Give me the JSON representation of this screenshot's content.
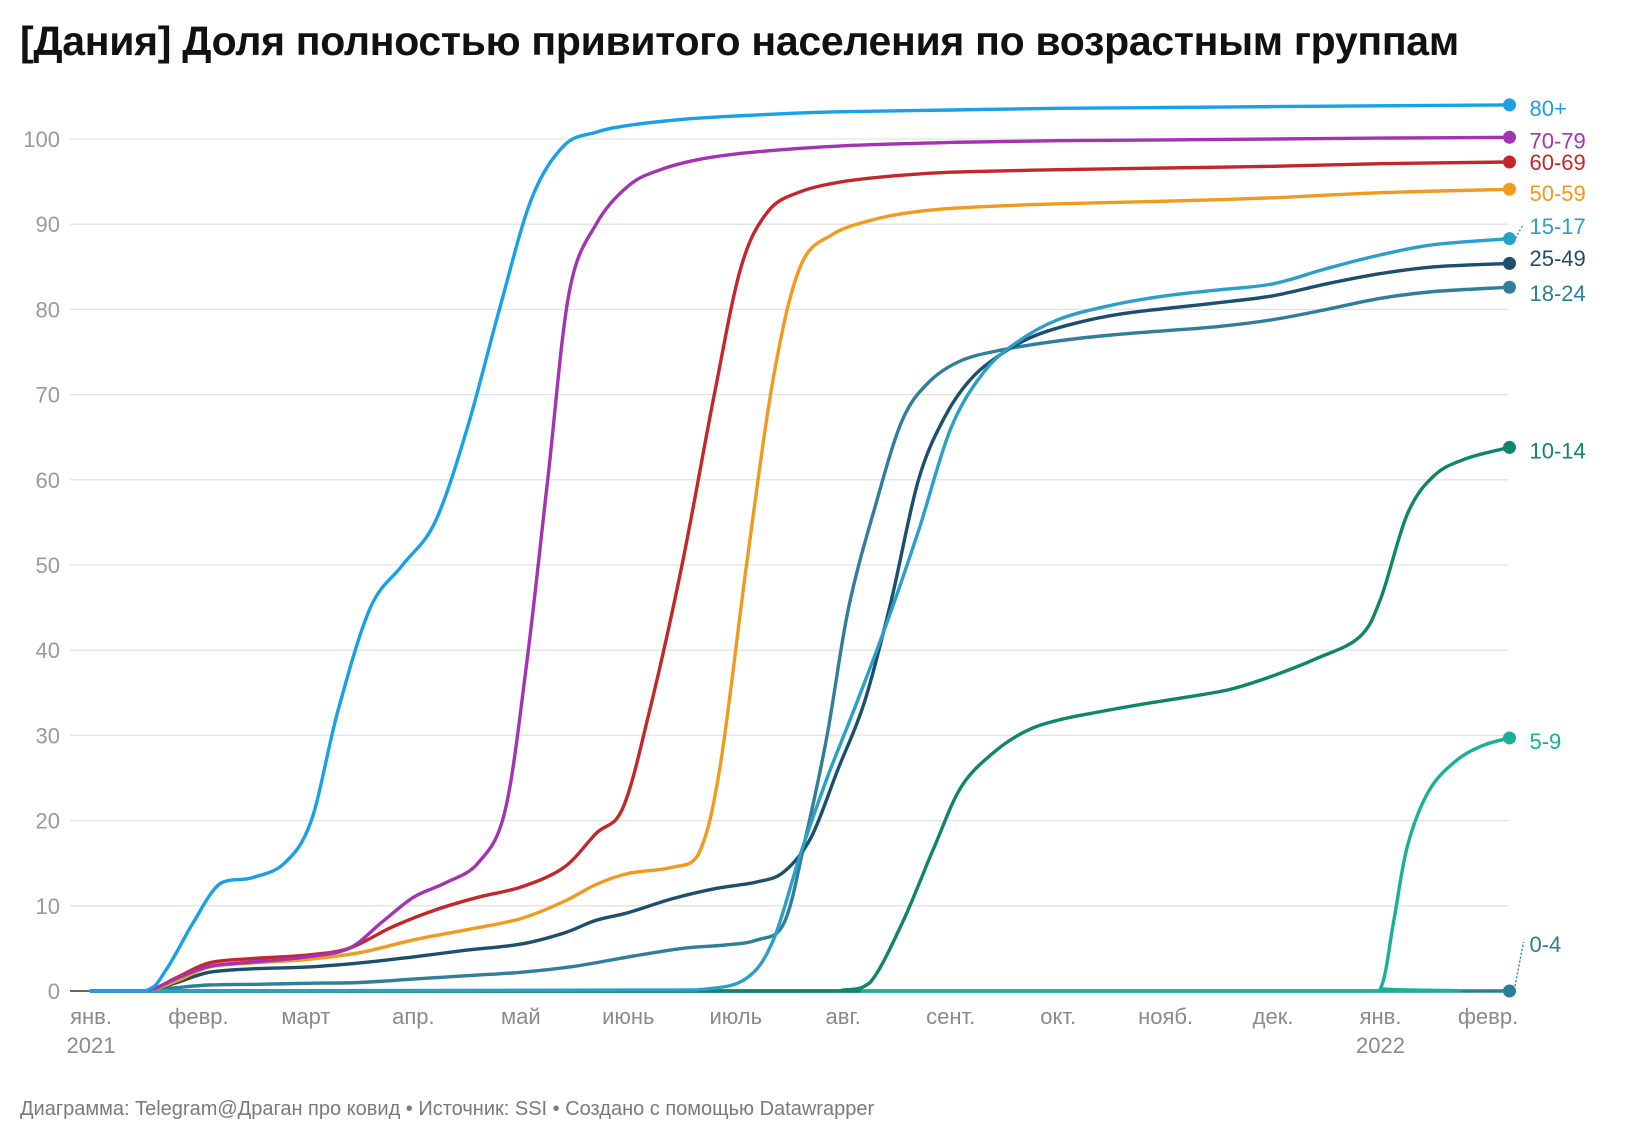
{
  "title": "[Дания] Доля полностью привитого населения по возрастным группам",
  "footer": {
    "text": "Диаграмма: Telegram@Драган про ковид • Источник: SSI • Создано с помощью Datawrapper"
  },
  "chart_data": {
    "type": "line",
    "title": "[Дания] Доля полностью привитого населения по возрастным группам",
    "ylim": [
      0,
      100
    ],
    "yticks": [
      0,
      10,
      20,
      30,
      40,
      50,
      60,
      70,
      80,
      90,
      100
    ],
    "grid": true,
    "legend": "direct labels at line ends (right)",
    "x_unit": "months since 2021-01-01",
    "xlim": [
      0,
      13.2
    ],
    "x_ticks": [
      {
        "pos": 0,
        "label": "янв.",
        "year": "2021"
      },
      {
        "pos": 1,
        "label": "февр.",
        "year": ""
      },
      {
        "pos": 2,
        "label": "март",
        "year": ""
      },
      {
        "pos": 3,
        "label": "апр.",
        "year": ""
      },
      {
        "pos": 4,
        "label": "май",
        "year": ""
      },
      {
        "pos": 5,
        "label": "июнь",
        "year": ""
      },
      {
        "pos": 6,
        "label": "июль",
        "year": ""
      },
      {
        "pos": 7,
        "label": "авг.",
        "year": ""
      },
      {
        "pos": 8,
        "label": "сент.",
        "year": ""
      },
      {
        "pos": 9,
        "label": "окт.",
        "year": ""
      },
      {
        "pos": 10,
        "label": "нояб.",
        "year": ""
      },
      {
        "pos": 11,
        "label": "дек.",
        "year": ""
      },
      {
        "pos": 12,
        "label": "янв.",
        "year": "2022"
      },
      {
        "pos": 13,
        "label": "февр.",
        "year": ""
      }
    ],
    "series": [
      {
        "name": "80+",
        "color": "#18a1e6",
        "points": [
          [
            0,
            0
          ],
          [
            0.5,
            0
          ],
          [
            0.7,
            2.5
          ],
          [
            0.95,
            8
          ],
          [
            1.2,
            12.6
          ],
          [
            1.5,
            13.3
          ],
          [
            1.8,
            15
          ],
          [
            2.05,
            20
          ],
          [
            2.3,
            33
          ],
          [
            2.6,
            45
          ],
          [
            2.9,
            50
          ],
          [
            3.2,
            55
          ],
          [
            3.5,
            66
          ],
          [
            3.8,
            80
          ],
          [
            4.1,
            93
          ],
          [
            4.4,
            99.2
          ],
          [
            4.7,
            100.8
          ],
          [
            5.0,
            101.6
          ],
          [
            5.5,
            102.3
          ],
          [
            6.0,
            102.7
          ],
          [
            6.5,
            103.0
          ],
          [
            7.0,
            103.2
          ],
          [
            8.0,
            103.4
          ],
          [
            9.0,
            103.6
          ],
          [
            10.0,
            103.7
          ],
          [
            11.0,
            103.8
          ],
          [
            12.0,
            103.9
          ],
          [
            13.2,
            104.0
          ]
        ]
      },
      {
        "name": "70-79",
        "color": "#a333b1",
        "points": [
          [
            0,
            0
          ],
          [
            0.5,
            0
          ],
          [
            0.8,
            1.5
          ],
          [
            1.1,
            2.9
          ],
          [
            1.5,
            3.4
          ],
          [
            2.0,
            4.0
          ],
          [
            2.4,
            5.0
          ],
          [
            2.7,
            8.0
          ],
          [
            3.0,
            11.0
          ],
          [
            3.3,
            12.7
          ],
          [
            3.6,
            15.0
          ],
          [
            3.85,
            21
          ],
          [
            4.05,
            38
          ],
          [
            4.25,
            60
          ],
          [
            4.45,
            82
          ],
          [
            4.7,
            90
          ],
          [
            5.0,
            94.5
          ],
          [
            5.3,
            96.4
          ],
          [
            5.7,
            97.7
          ],
          [
            6.2,
            98.5
          ],
          [
            7.0,
            99.2
          ],
          [
            8.0,
            99.6
          ],
          [
            9.0,
            99.8
          ],
          [
            10.0,
            99.9
          ],
          [
            11.0,
            100.0
          ],
          [
            12.0,
            100.1
          ],
          [
            13.2,
            100.2
          ]
        ]
      },
      {
        "name": "60-69",
        "color": "#c3272b",
        "points": [
          [
            0,
            0
          ],
          [
            0.5,
            0
          ],
          [
            0.8,
            1.6
          ],
          [
            1.1,
            3.3
          ],
          [
            1.5,
            3.8
          ],
          [
            2.0,
            4.2
          ],
          [
            2.4,
            5.0
          ],
          [
            2.8,
            7.5
          ],
          [
            3.2,
            9.5
          ],
          [
            3.6,
            11.0
          ],
          [
            4.0,
            12.2
          ],
          [
            4.4,
            14.5
          ],
          [
            4.7,
            18.5
          ],
          [
            4.95,
            21.5
          ],
          [
            5.2,
            33
          ],
          [
            5.5,
            50
          ],
          [
            5.8,
            70
          ],
          [
            6.05,
            85
          ],
          [
            6.3,
            91.5
          ],
          [
            6.6,
            93.8
          ],
          [
            7.0,
            95.0
          ],
          [
            7.5,
            95.7
          ],
          [
            8.0,
            96.1
          ],
          [
            9.0,
            96.4
          ],
          [
            10.0,
            96.6
          ],
          [
            11.0,
            96.8
          ],
          [
            12.0,
            97.1
          ],
          [
            13.2,
            97.3
          ]
        ]
      },
      {
        "name": "50-59",
        "color": "#f09a1e",
        "points": [
          [
            0,
            0
          ],
          [
            0.5,
            0
          ],
          [
            0.8,
            1.2
          ],
          [
            1.1,
            2.8
          ],
          [
            1.5,
            3.3
          ],
          [
            2.0,
            3.7
          ],
          [
            2.5,
            4.5
          ],
          [
            3.0,
            6.0
          ],
          [
            3.5,
            7.2
          ],
          [
            4.0,
            8.5
          ],
          [
            4.4,
            10.5
          ],
          [
            4.7,
            12.5
          ],
          [
            5.0,
            13.8
          ],
          [
            5.4,
            14.5
          ],
          [
            5.65,
            16.0
          ],
          [
            5.85,
            26
          ],
          [
            6.1,
            50
          ],
          [
            6.35,
            72
          ],
          [
            6.6,
            85
          ],
          [
            6.9,
            88.8
          ],
          [
            7.3,
            90.6
          ],
          [
            7.7,
            91.5
          ],
          [
            8.2,
            92.0
          ],
          [
            9.0,
            92.4
          ],
          [
            10.0,
            92.7
          ],
          [
            11.0,
            93.1
          ],
          [
            12.0,
            93.7
          ],
          [
            13.2,
            94.1
          ]
        ]
      },
      {
        "name": "15-17",
        "color": "#2a9fc8",
        "points": [
          [
            0,
            0
          ],
          [
            5.0,
            0.1
          ],
          [
            5.7,
            0.2
          ],
          [
            6.1,
            1.5
          ],
          [
            6.35,
            6.0
          ],
          [
            6.6,
            16.0
          ],
          [
            6.85,
            25.0
          ],
          [
            7.1,
            33.0
          ],
          [
            7.4,
            43.0
          ],
          [
            7.7,
            54.0
          ],
          [
            8.0,
            66.0
          ],
          [
            8.3,
            72.5
          ],
          [
            8.6,
            76.0
          ],
          [
            9.0,
            78.8
          ],
          [
            9.5,
            80.5
          ],
          [
            10.0,
            81.6
          ],
          [
            10.5,
            82.3
          ],
          [
            11.0,
            83.0
          ],
          [
            11.5,
            84.8
          ],
          [
            12.0,
            86.4
          ],
          [
            12.5,
            87.6
          ],
          [
            13.2,
            88.3
          ]
        ]
      },
      {
        "name": "25-49",
        "color": "#1c4e6e",
        "points": [
          [
            0,
            0
          ],
          [
            0.5,
            0
          ],
          [
            0.8,
            1.0
          ],
          [
            1.1,
            2.2
          ],
          [
            1.5,
            2.6
          ],
          [
            2.0,
            2.8
          ],
          [
            2.5,
            3.3
          ],
          [
            3.0,
            4.0
          ],
          [
            3.5,
            4.8
          ],
          [
            4.0,
            5.5
          ],
          [
            4.4,
            6.8
          ],
          [
            4.7,
            8.3
          ],
          [
            5.0,
            9.2
          ],
          [
            5.4,
            10.8
          ],
          [
            5.8,
            12.0
          ],
          [
            6.2,
            12.8
          ],
          [
            6.45,
            14.0
          ],
          [
            6.7,
            18.0
          ],
          [
            6.95,
            26.0
          ],
          [
            7.2,
            34.0
          ],
          [
            7.45,
            46.0
          ],
          [
            7.7,
            60.0
          ],
          [
            7.95,
            67.5
          ],
          [
            8.2,
            72.0
          ],
          [
            8.5,
            75.0
          ],
          [
            8.8,
            77.0
          ],
          [
            9.2,
            78.5
          ],
          [
            9.6,
            79.5
          ],
          [
            10.0,
            80.1
          ],
          [
            10.5,
            80.8
          ],
          [
            11.0,
            81.6
          ],
          [
            11.5,
            83.0
          ],
          [
            12.0,
            84.2
          ],
          [
            12.5,
            85.0
          ],
          [
            13.2,
            85.4
          ]
        ]
      },
      {
        "name": "18-24",
        "color": "#2f7f9a",
        "points": [
          [
            0,
            0
          ],
          [
            0.5,
            0
          ],
          [
            0.8,
            0.4
          ],
          [
            1.1,
            0.7
          ],
          [
            1.6,
            0.8
          ],
          [
            2.0,
            0.9
          ],
          [
            2.5,
            1.0
          ],
          [
            3.0,
            1.4
          ],
          [
            3.5,
            1.8
          ],
          [
            4.0,
            2.2
          ],
          [
            4.5,
            2.9
          ],
          [
            5.0,
            4.0
          ],
          [
            5.5,
            5.0
          ],
          [
            5.9,
            5.4
          ],
          [
            6.2,
            6.0
          ],
          [
            6.45,
            8.0
          ],
          [
            6.65,
            18.0
          ],
          [
            6.85,
            30.0
          ],
          [
            7.05,
            45.0
          ],
          [
            7.3,
            57.0
          ],
          [
            7.55,
            67.0
          ],
          [
            7.8,
            71.5
          ],
          [
            8.1,
            74.0
          ],
          [
            8.5,
            75.3
          ],
          [
            9.0,
            76.3
          ],
          [
            9.5,
            77.0
          ],
          [
            10.0,
            77.5
          ],
          [
            10.5,
            78.0
          ],
          [
            11.0,
            78.8
          ],
          [
            11.5,
            80.0
          ],
          [
            12.0,
            81.3
          ],
          [
            12.5,
            82.1
          ],
          [
            13.2,
            82.6
          ]
        ]
      },
      {
        "name": "10-14",
        "color": "#0f8569",
        "points": [
          [
            0,
            0
          ],
          [
            6.5,
            0
          ],
          [
            7.0,
            0.1
          ],
          [
            7.25,
            1.0
          ],
          [
            7.55,
            8.0
          ],
          [
            7.85,
            17.0
          ],
          [
            8.1,
            24.0
          ],
          [
            8.4,
            28.0
          ],
          [
            8.7,
            30.5
          ],
          [
            9.0,
            31.8
          ],
          [
            9.4,
            32.8
          ],
          [
            9.8,
            33.7
          ],
          [
            10.2,
            34.5
          ],
          [
            10.6,
            35.4
          ],
          [
            11.0,
            37.0
          ],
          [
            11.4,
            39.0
          ],
          [
            11.8,
            41.5
          ],
          [
            12.0,
            46.0
          ],
          [
            12.25,
            56.0
          ],
          [
            12.5,
            60.5
          ],
          [
            12.8,
            62.5
          ],
          [
            13.2,
            63.8
          ]
        ]
      },
      {
        "name": "5-9",
        "color": "#18b195",
        "points": [
          [
            0,
            0
          ],
          [
            11.8,
            0
          ],
          [
            12.0,
            0.3
          ],
          [
            12.12,
            8.0
          ],
          [
            12.25,
            17.0
          ],
          [
            12.45,
            23.5
          ],
          [
            12.7,
            27.0
          ],
          [
            12.95,
            28.8
          ],
          [
            13.2,
            29.7
          ]
        ]
      },
      {
        "name": "0-4",
        "color": "#2a7f96",
        "points": [
          [
            0,
            0
          ],
          [
            13.2,
            0
          ]
        ]
      }
    ]
  }
}
